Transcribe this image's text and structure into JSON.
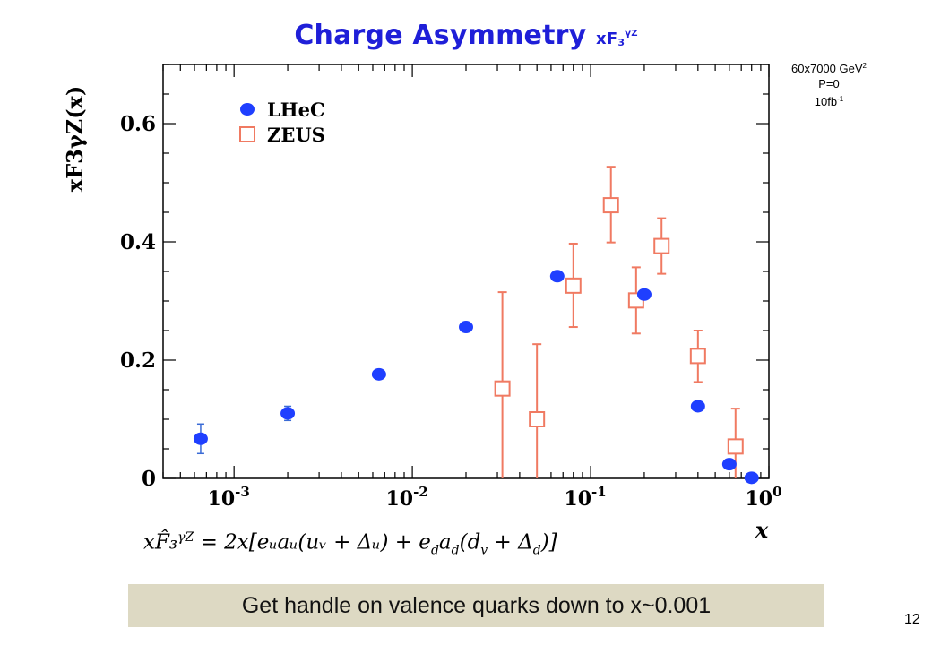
{
  "slide": {
    "title": "Charge Asymmetry",
    "title_var": "xF",
    "title_sub": "3",
    "title_sup": "γZ",
    "conditions": [
      "60x7000 GeV",
      "2",
      "P=0",
      "10fb",
      "-1"
    ],
    "formula": "xF̂₃^{γZ} = 2x[e_u a_u(u_v + Δ_u) + e_d a_d(d_v + Δ_d)]",
    "formula_display": "xF̂₃",
    "formula_sup": "γZ",
    "formula_rest": " = 2x[eᵤaᵤ(uᵥ + Δᵤ) + e",
    "formula_rest2": "a",
    "formula_rest3": "(d",
    "formula_rest4": " + Δ",
    "formula_rest5": ")]",
    "banner": "Get handle on valence quarks down to x~0.001",
    "page_number": "12"
  },
  "chart_data": {
    "type": "scatter",
    "xscale": "log",
    "xlim": [
      0.0004,
      1.0
    ],
    "ylim": [
      0,
      0.7
    ],
    "xlabel": "x",
    "ylabel": "xF3γZ(x)",
    "x_ticks": [
      "10-3",
      "10-2",
      "10-1",
      "100"
    ],
    "y_ticks": [
      "0",
      "0.2",
      "0.4",
      "0.6"
    ],
    "legend_position": "top-left",
    "series": [
      {
        "name": "LHeC",
        "color": "#1f3fff",
        "marker": "filled-circle",
        "points": [
          {
            "x": 0.00065,
            "y": 0.067,
            "err": 0.025
          },
          {
            "x": 0.002,
            "y": 0.11,
            "err": 0.012
          },
          {
            "x": 0.0065,
            "y": 0.176,
            "err": 0.0
          },
          {
            "x": 0.02,
            "y": 0.256,
            "err": 0.0
          },
          {
            "x": 0.065,
            "y": 0.342,
            "err": 0.0
          },
          {
            "x": 0.2,
            "y": 0.311,
            "err": 0.0
          },
          {
            "x": 0.4,
            "y": 0.122,
            "err": 0.0
          },
          {
            "x": 0.6,
            "y": 0.024,
            "err": 0.0
          },
          {
            "x": 0.8,
            "y": 0.001,
            "err": 0.0
          }
        ]
      },
      {
        "name": "ZEUS",
        "color": "#f07a62",
        "marker": "open-square",
        "points": [
          {
            "x": 0.032,
            "y": 0.152,
            "yhi": 0.315,
            "ylo": 0.0
          },
          {
            "x": 0.05,
            "y": 0.1,
            "yhi": 0.227,
            "ylo": 0.0
          },
          {
            "x": 0.08,
            "y": 0.326,
            "yhi": 0.397,
            "ylo": 0.256
          },
          {
            "x": 0.13,
            "y": 0.462,
            "yhi": 0.527,
            "ylo": 0.399
          },
          {
            "x": 0.18,
            "y": 0.301,
            "yhi": 0.357,
            "ylo": 0.245
          },
          {
            "x": 0.25,
            "y": 0.393,
            "yhi": 0.44,
            "ylo": 0.346
          },
          {
            "x": 0.4,
            "y": 0.207,
            "yhi": 0.25,
            "ylo": 0.163
          },
          {
            "x": 0.65,
            "y": 0.054,
            "yhi": 0.118,
            "ylo": 0.0
          }
        ]
      }
    ]
  }
}
